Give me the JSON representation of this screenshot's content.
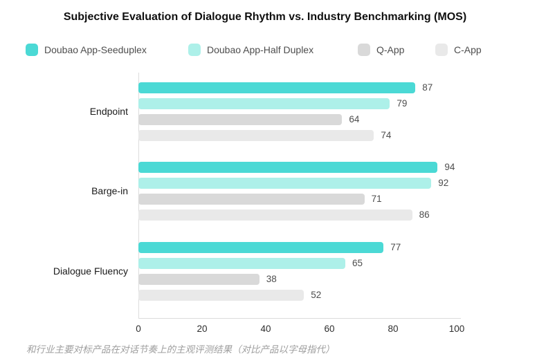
{
  "caption": "和行业主要对标产品在对话节奏上的主观评测结果（对比产品以字母指代）",
  "colors": {
    "series_teal": "#4bd9d5",
    "series_light_cyan": "#adf0e9",
    "series_gray": "#d9d9d9",
    "series_light_gray": "#e9e9e9",
    "axis_line": "#dcdcdc",
    "value_label": "#4d4d4d",
    "tick_label": "#2e2e2e",
    "category_label": "#191919",
    "caption_text": "#9e9e9e"
  },
  "chart_data": {
    "type": "bar",
    "orientation": "horizontal",
    "title": "Subjective Evaluation of Dialogue Rhythm vs. Industry Benchmarking (MOS)",
    "categories": [
      "Endpoint",
      "Barge-in",
      "Dialogue Fluency"
    ],
    "series": [
      {
        "name": "Doubao App-Seeduplex",
        "color": "#4bd9d5",
        "values": [
          87,
          94,
          77
        ]
      },
      {
        "name": "Doubao App-Half Duplex",
        "color": "#adf0e9",
        "values": [
          79,
          92,
          65
        ]
      },
      {
        "name": "Q-App",
        "color": "#d9d9d9",
        "values": [
          64,
          71,
          38
        ]
      },
      {
        "name": "C-App",
        "color": "#e9e9e9",
        "values": [
          74,
          86,
          52
        ]
      }
    ],
    "xlim": [
      0,
      100
    ],
    "x_ticks": [
      0,
      20,
      40,
      60,
      80,
      100
    ],
    "legend_position": "top",
    "grid": false,
    "value_labels_shown": true
  }
}
